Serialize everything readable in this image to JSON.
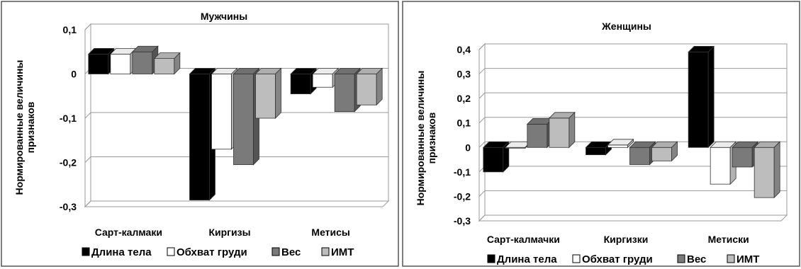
{
  "chart_data": [
    {
      "type": "bar",
      "title": "Мужчины",
      "ylabel_line1": "Нормированные величины",
      "ylabel_line2": "признаков",
      "categories": [
        "Сарт-калмаки",
        "Киргизы",
        "Метисы"
      ],
      "ylim": [
        -0.3,
        0.1
      ],
      "yticks": [
        "0,1",
        "0",
        "-0,1",
        "-0,2",
        "-0,3"
      ],
      "ytick_values": [
        0.1,
        0,
        -0.1,
        -0.2,
        -0.3
      ],
      "series": [
        {
          "name": "Длина тела",
          "color": "#000000",
          "values": [
            0.045,
            -0.285,
            -0.045
          ]
        },
        {
          "name": "Обхват груди",
          "color": "#ffffff",
          "values": [
            0.045,
            -0.17,
            -0.03
          ]
        },
        {
          "name": "Вес",
          "color": "#7a7a7a",
          "values": [
            0.05,
            -0.205,
            -0.085
          ]
        },
        {
          "name": "ИМТ",
          "color": "#bdbdbd",
          "values": [
            0.035,
            -0.1,
            -0.07
          ]
        }
      ],
      "legend_position": "bottom",
      "grid": true
    },
    {
      "type": "bar",
      "title": "Женщины",
      "ylabel_line1": "Нормированные величины",
      "ylabel_line2": "признаков",
      "categories": [
        "Сарт-калмачки",
        "Киргизки",
        "Метиски"
      ],
      "ylim": [
        -0.3,
        0.4
      ],
      "yticks": [
        "0,4",
        "0,3",
        "0,2",
        "0,1",
        "0",
        "-0,1",
        "-0,2",
        "-0,3"
      ],
      "ytick_values": [
        0.4,
        0.3,
        0.2,
        0.1,
        0,
        -0.1,
        -0.2,
        -0.3
      ],
      "series": [
        {
          "name": "Длина тела",
          "color": "#000000",
          "values": [
            -0.1,
            -0.03,
            0.39
          ]
        },
        {
          "name": "Обхват груди",
          "color": "#ffffff",
          "values": [
            0.0,
            0.01,
            -0.15
          ]
        },
        {
          "name": "Вес",
          "color": "#7a7a7a",
          "values": [
            0.095,
            -0.07,
            -0.08
          ]
        },
        {
          "name": "ИМТ",
          "color": "#bdbdbd",
          "values": [
            0.12,
            -0.055,
            -0.205
          ]
        }
      ],
      "legend_position": "bottom",
      "grid": true
    }
  ]
}
